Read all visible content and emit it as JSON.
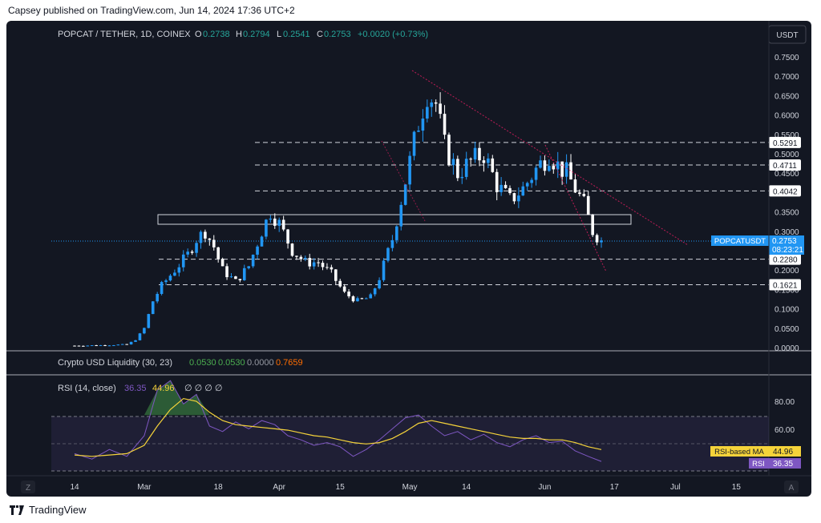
{
  "header": {
    "published": "Capsey published on TradingView.com, Jun 14, 2024 17:36 UTC+2"
  },
  "footer": {
    "brand": "TradingView",
    "logo_icon": "tradingview-logo-icon"
  },
  "colors": {
    "background": "#131722",
    "up": "#2196f3",
    "down": "#ffffff",
    "rsi": "#7e57c2",
    "rsi_ma": "#f5d33a",
    "liq_green": "#4caf50",
    "liq_orange": "#ff6d00"
  },
  "legend": {
    "symbol": "POPCAT / TETHER, 1D, COINEX",
    "o_label": "O",
    "o": "0.2738",
    "h_label": "H",
    "h": "0.2794",
    "l_label": "L",
    "l": "0.2541",
    "c_label": "C",
    "c": "0.2753",
    "change": "+0.0020 (+0.73%)"
  },
  "liquidity": {
    "title": "Crypto USD Liquidity (30, 23)",
    "v1": "0.0530",
    "v2": "0.0530",
    "v3": "0.0000",
    "v4": "0.7659"
  },
  "rsi": {
    "title": "RSI (14, close)",
    "v1": "36.35",
    "v2": "44.96",
    "na": "∅ ∅ ∅ ∅",
    "ma_tag_label": "RSI-based MA",
    "ma_tag_value": "44.96",
    "rsi_tag_label": "RSI",
    "rsi_tag_value": "36.35",
    "ticks": [
      "80.00",
      "60.00"
    ]
  },
  "price_axis": {
    "currency": "USDT",
    "ticks": [
      "0.7500",
      "0.7000",
      "0.6500",
      "0.6000",
      "0.5500",
      "0.5000",
      "0.4500",
      "0.4000",
      "0.3500",
      "0.3000",
      "0.2500",
      "0.2000",
      "0.1500",
      "0.1000",
      "0.0500",
      "0.0000"
    ],
    "levels": [
      "0.5291",
      "0.4711",
      "0.4042",
      "0.2280",
      "0.1621"
    ],
    "current_symbol": "POPCATUSDT",
    "current_price": "0.2753",
    "countdown": "08:23:21"
  },
  "time_axis": {
    "labels": [
      "14",
      "Mar",
      "18",
      "Apr",
      "15",
      "May",
      "14",
      "Jun",
      "17",
      "Jul",
      "15"
    ],
    "left_button": "Z",
    "right_button": "A"
  },
  "chart_data": [
    {
      "type": "candlestick",
      "symbol": "POPCAT / TETHER",
      "interval": "1D",
      "ylim": [
        0,
        0.78
      ],
      "annotations": {
        "support_resistance_levels": [
          0.5291,
          0.4711,
          0.4042,
          0.228,
          0.1621
        ],
        "supply_zone": [
          0.32,
          0.345
        ],
        "current_price_line": 0.2753,
        "descending_trendlines": [
          {
            "from": [
              "May 3",
              0.72
            ],
            "to": [
              "Jun 24",
              0.275
            ]
          },
          {
            "from": [
              "Jun 4",
              0.53
            ],
            "to": [
              "Jun 21",
              0.195
            ]
          }
        ]
      },
      "close_path": [
        [
          "Feb 14",
          0.005
        ],
        [
          "Feb 20",
          0.006
        ],
        [
          "Feb 26",
          0.008
        ],
        [
          "Feb 28",
          0.02
        ],
        [
          "Mar 1",
          0.05
        ],
        [
          "Mar 3",
          0.12
        ],
        [
          "Mar 5",
          0.16
        ],
        [
          "Mar 8",
          0.2
        ],
        [
          "Mar 11",
          0.24
        ],
        [
          "Mar 13",
          0.28
        ],
        [
          "Mar 15",
          0.3
        ],
        [
          "Mar 17",
          0.26
        ],
        [
          "Mar 19",
          0.2
        ],
        [
          "Mar 22",
          0.17
        ],
        [
          "Mar 25",
          0.21
        ],
        [
          "Mar 28",
          0.3
        ],
        [
          "Mar 30",
          0.35
        ],
        [
          "Apr 1",
          0.32
        ],
        [
          "Apr 4",
          0.25
        ],
        [
          "Apr 7",
          0.22
        ],
        [
          "Apr 10",
          0.22
        ],
        [
          "Apr 13",
          0.19
        ],
        [
          "Apr 16",
          0.14
        ],
        [
          "Apr 19",
          0.12
        ],
        [
          "Apr 22",
          0.13
        ],
        [
          "Apr 24",
          0.18
        ],
        [
          "Apr 27",
          0.28
        ],
        [
          "Apr 29",
          0.38
        ],
        [
          "May 1",
          0.48
        ],
        [
          "May 3",
          0.58
        ],
        [
          "May 5",
          0.66
        ],
        [
          "May 7",
          0.63
        ],
        [
          "May 9",
          0.52
        ],
        [
          "May 12",
          0.45
        ],
        [
          "May 15",
          0.48
        ],
        [
          "May 18",
          0.5
        ],
        [
          "May 21",
          0.42
        ],
        [
          "May 24",
          0.38
        ],
        [
          "May 27",
          0.41
        ],
        [
          "May 30",
          0.46
        ],
        [
          "Jun 2",
          0.5
        ],
        [
          "Jun 4",
          0.47
        ],
        [
          "Jun 6",
          0.45
        ],
        [
          "Jun 8",
          0.41
        ],
        [
          "Jun 10",
          0.37
        ],
        [
          "Jun 12",
          0.3
        ],
        [
          "Jun 14",
          0.2753
        ]
      ]
    },
    {
      "type": "line",
      "title": "Crypto USD Liquidity (30, 23)",
      "values_shown": [
        0.053,
        0.053,
        0.0,
        0.7659
      ]
    },
    {
      "type": "line",
      "title": "RSI (14, close)",
      "ylim": [
        20,
        100
      ],
      "bands": {
        "upper": 70,
        "middle": 50,
        "lower": 30
      },
      "series": [
        {
          "name": "RSI",
          "x": [
            "Feb 14",
            "Feb 18",
            "Feb 22",
            "Feb 26",
            "Mar 1",
            "Mar 4",
            "Mar 7",
            "Mar 10",
            "Mar 13",
            "Mar 16",
            "Mar 19",
            "Mar 22",
            "Mar 25",
            "Mar 28",
            "Mar 31",
            "Apr 3",
            "Apr 6",
            "Apr 9",
            "Apr 12",
            "Apr 15",
            "Apr 18",
            "Apr 21",
            "Apr 24",
            "Apr 27",
            "Apr 30",
            "May 3",
            "May 6",
            "May 9",
            "May 12",
            "May 15",
            "May 18",
            "May 21",
            "May 24",
            "May 27",
            "May 30",
            "Jun 2",
            "Jun 5",
            "Jun 8",
            "Jun 11",
            "Jun 14"
          ],
          "values": [
            42,
            38,
            45,
            40,
            55,
            88,
            95,
            78,
            85,
            62,
            58,
            65,
            60,
            66,
            63,
            55,
            52,
            48,
            50,
            47,
            40,
            45,
            52,
            60,
            68,
            70,
            62,
            55,
            58,
            52,
            56,
            50,
            47,
            52,
            55,
            50,
            51,
            44,
            40,
            36.35
          ]
        },
        {
          "name": "RSI-based MA",
          "x": [
            "Feb 14",
            "Feb 18",
            "Feb 22",
            "Feb 26",
            "Mar 1",
            "Mar 4",
            "Mar 7",
            "Mar 10",
            "Mar 13",
            "Mar 16",
            "Mar 19",
            "Mar 22",
            "Mar 25",
            "Mar 28",
            "Mar 31",
            "Apr 3",
            "Apr 6",
            "Apr 9",
            "Apr 12",
            "Apr 15",
            "Apr 18",
            "Apr 21",
            "Apr 24",
            "Apr 27",
            "Apr 30",
            "May 3",
            "May 6",
            "May 9",
            "May 12",
            "May 15",
            "May 18",
            "May 21",
            "May 24",
            "May 27",
            "May 30",
            "Jun 2",
            "Jun 5",
            "Jun 8",
            "Jun 11",
            "Jun 14"
          ],
          "values": [
            41,
            40,
            41,
            42,
            48,
            62,
            74,
            82,
            80,
            72,
            66,
            63,
            62,
            61,
            60,
            59,
            57,
            55,
            54,
            52,
            50,
            49,
            50,
            53,
            58,
            64,
            66,
            64,
            62,
            60,
            58,
            56,
            54,
            53,
            53,
            52,
            52,
            50,
            47,
            44.96
          ]
        }
      ]
    }
  ]
}
